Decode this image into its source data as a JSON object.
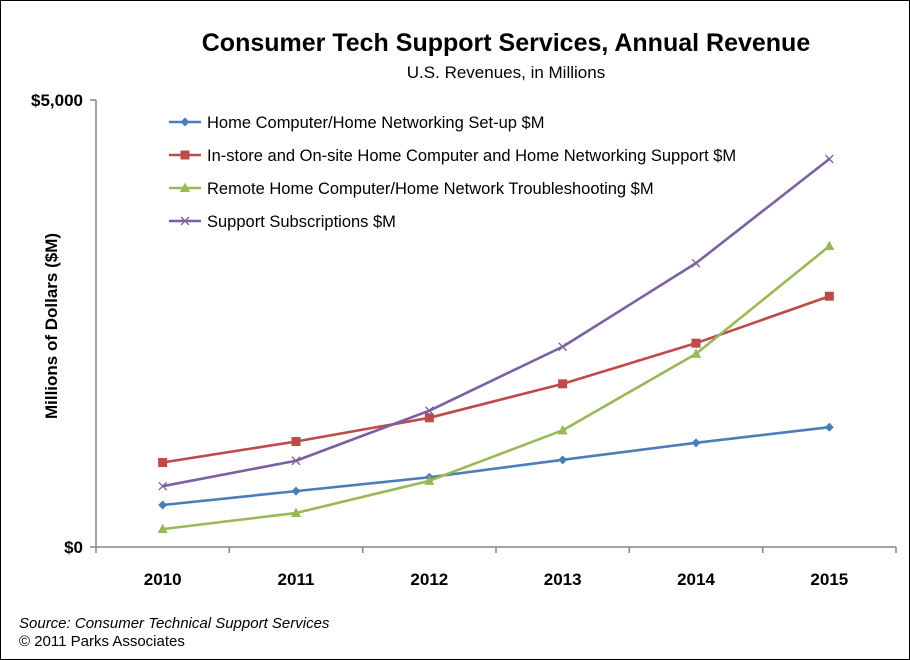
{
  "chart_data": {
    "type": "line",
    "title": "Consumer Tech Support Services, Annual Revenue",
    "subtitle": "U.S. Revenues, in Millions",
    "ylabel": "Millions of Dollars ($M)",
    "xlabel": "",
    "categories": [
      "2010",
      "2011",
      "2012",
      "2013",
      "2014",
      "2015"
    ],
    "ylim": [
      0,
      5000
    ],
    "y_ticks": [
      "$0",
      "$5,000"
    ],
    "grid": false,
    "legend_position": "top-left",
    "series": [
      {
        "name": "Home Computer/Home Networking Set-up $M",
        "color": "#4a7ebb",
        "marker": "diamond",
        "values": [
          470,
          625,
          780,
          975,
          1165,
          1340
        ]
      },
      {
        "name": "In-store and On-site Home Computer and Home Networking Support $M",
        "color": "#be4b48",
        "marker": "square",
        "values": [
          945,
          1180,
          1445,
          1825,
          2280,
          2805
        ]
      },
      {
        "name": "Remote Home Computer/Home Network Troubleshooting $M",
        "color": "#98b954",
        "marker": "triangle",
        "values": [
          200,
          380,
          740,
          1305,
          2160,
          3365
        ]
      },
      {
        "name": "Support Subscriptions $M",
        "color": "#7d60a0",
        "marker": "x",
        "values": [
          680,
          965,
          1525,
          2240,
          3175,
          4340
        ]
      }
    ]
  },
  "footer": {
    "source": "Source: Consumer Technical Support Services",
    "copyright": "© 2011 Parks Associates"
  }
}
